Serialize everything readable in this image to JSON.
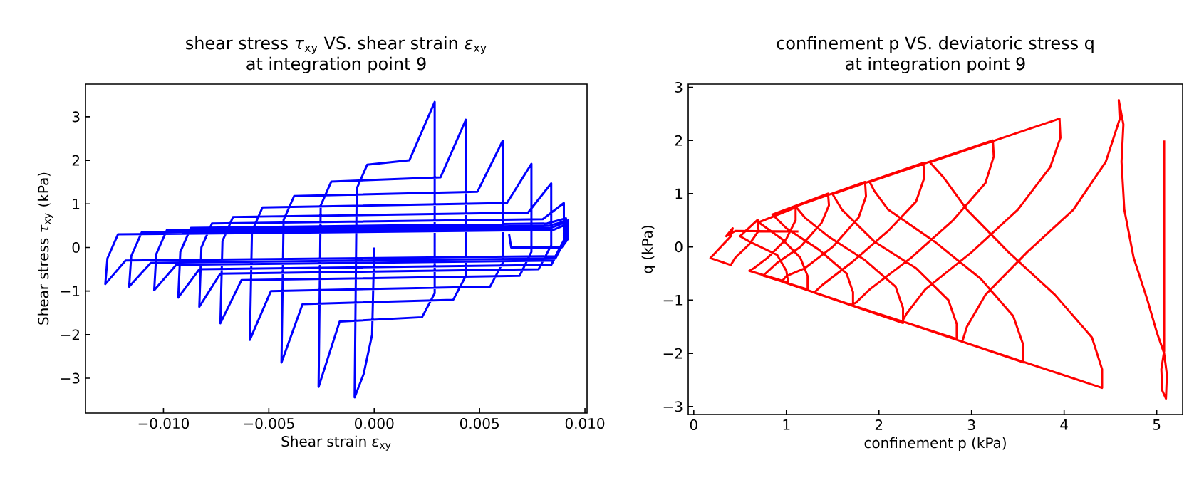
{
  "chart_data": [
    {
      "type": "line",
      "title": "shear stress *τ*$_{xy}$ VS. shear strain *ε*$_{xy}$",
      "subtitle": "at integration point 9",
      "xlabel": "Shear strain *ε*$_{xy}$",
      "ylabel": "Shear stress *τ*$_{xy}$ (kPa)",
      "xlim": [
        -0.0137,
        0.0101
      ],
      "ylim": [
        -3.8,
        3.75
      ],
      "xticks": [
        {
          "value": -0.01,
          "label": "−0.010"
        },
        {
          "value": -0.005,
          "label": "−0.005"
        },
        {
          "value": 0,
          "label": "0.000"
        },
        {
          "value": 0.005,
          "label": "0.005"
        },
        {
          "value": 0.01,
          "label": "0.010"
        }
      ],
      "yticks": [
        {
          "value": -3,
          "label": "−3"
        },
        {
          "value": -2,
          "label": "−2"
        },
        {
          "value": -1,
          "label": "−1"
        },
        0,
        1,
        2,
        3
      ],
      "grid": false,
      "marker": "none",
      "line_style": "solid",
      "series": [
        {
          "color": "#0000ff",
          "x": [
            0,
            -0.0001,
            -0.0005,
            -0.00093,
            -0.00083,
            -0.00033,
            0.00167,
            0.00287,
            0.00287,
            0.00227,
            -0.00164,
            -0.00264,
            -0.00254,
            -0.00204,
            0.00315,
            0.00435,
            0.00435,
            0.00375,
            -0.0034,
            -0.0044,
            -0.0043,
            -0.0038,
            0.0049,
            0.0061,
            0.0061,
            0.0055,
            -0.0049,
            -0.0059,
            -0.0058,
            -0.0053,
            0.0063,
            0.00746,
            0.00746,
            0.0069,
            -0.0063,
            -0.0073,
            -0.0072,
            -0.0067,
            0.0073,
            0.0084,
            0.0084,
            0.0078,
            -0.0073,
            -0.0083,
            -0.0082,
            -0.0077,
            0.008,
            0.009,
            0.009,
            0.0084,
            -0.0083,
            -0.0093,
            -0.0092,
            -0.0087,
            0.0082,
            0.0091,
            0.0091,
            0.0085,
            -0.0094,
            -0.01044,
            -0.01034,
            -0.00984,
            0.0083,
            0.0092,
            0.0092,
            0.0086,
            -0.0106,
            -0.01163,
            -0.01153,
            -0.01103,
            0.0084,
            0.0092,
            0.0092,
            0.0086,
            -0.0118,
            -0.01276,
            -0.01266,
            -0.01216,
            0.0085,
            0.0092,
            0.0092,
            0.0089,
            0.0065,
            0.0064
          ],
          "values": [
            0,
            -2.0,
            -2.9,
            -3.44,
            1.35,
            1.9,
            2.0,
            3.34,
            -1.05,
            -1.6,
            -1.7,
            -3.2,
            0.96,
            1.51,
            1.61,
            2.93,
            -0.65,
            -1.2,
            -1.3,
            -2.64,
            0.63,
            1.18,
            1.28,
            2.45,
            -0.35,
            -0.9,
            -1.0,
            -2.12,
            0.37,
            0.92,
            1.02,
            1.92,
            -0.1,
            -0.65,
            -0.75,
            -1.74,
            0.15,
            0.7,
            0.8,
            1.47,
            0.05,
            -0.5,
            -0.6,
            -1.36,
            0.0,
            0.55,
            0.65,
            1.02,
            0.15,
            -0.4,
            -0.5,
            -1.15,
            -0.1,
            0.45,
            0.55,
            0.67,
            0.25,
            -0.3,
            -0.4,
            -0.98,
            -0.15,
            0.4,
            0.5,
            0.62,
            0.3,
            -0.25,
            -0.35,
            -0.9,
            -0.2,
            0.35,
            0.45,
            0.6,
            0.35,
            -0.2,
            -0.3,
            -0.84,
            -0.25,
            0.3,
            0.4,
            0.55,
            0.2,
            0.0,
            0.0,
            0.3
          ]
        }
      ]
    },
    {
      "type": "line",
      "title": "confinement p VS. deviatoric stress q",
      "subtitle": "at integration point 9",
      "xlabel": "confinement p (kPa)",
      "ylabel": "q (kPa)",
      "xlim": [
        -0.06,
        5.28
      ],
      "ylim": [
        -3.15,
        3.06
      ],
      "xticks": [
        0,
        1,
        2,
        3,
        4,
        5
      ],
      "yticks": [
        {
          "value": -3,
          "label": "−3"
        },
        {
          "value": -2,
          "label": "−2"
        },
        {
          "value": -1,
          "label": "−1"
        },
        0,
        1,
        2,
        3
      ],
      "grid": false,
      "marker": "none",
      "line_style": "solid",
      "series": [
        {
          "color": "#ff0000",
          "x": [
            5.08,
            5.08,
            5.05,
            5.06,
            5.1,
            5.11,
            5.08,
            5.0,
            4.9,
            4.75,
            4.65,
            4.62,
            4.64,
            4.59,
            4.6,
            4.45,
            4.1,
            3.6,
            3.15,
            2.95,
            2.9,
            4.41,
            4.41,
            4.3,
            3.9,
            3.4,
            2.95,
            2.7,
            2.55,
            3.95,
            3.96,
            3.85,
            3.5,
            3.0,
            2.5,
            2.3,
            2.25,
            3.56,
            3.56,
            3.45,
            3.1,
            2.6,
            2.1,
            1.95,
            1.9,
            3.23,
            3.24,
            3.15,
            2.8,
            2.35,
            1.9,
            1.75,
            1.7,
            2.84,
            2.84,
            2.75,
            2.4,
            1.95,
            1.6,
            1.5,
            2.48,
            2.49,
            2.4,
            2.1,
            1.7,
            1.4,
            1.3,
            2.26,
            2.26,
            2.18,
            1.85,
            1.45,
            1.2,
            1.1,
            1.85,
            1.86,
            1.78,
            1.5,
            1.2,
            1.0,
            0.95,
            1.72,
            1.72,
            1.65,
            1.35,
            1.0,
            0.85,
            1.45,
            1.46,
            1.38,
            1.15,
            0.9,
            0.75,
            1.23,
            1.23,
            1.15,
            0.95,
            0.75,
            0.7,
            1.1,
            1.1,
            1.0,
            0.8,
            0.65,
            0.6,
            1.02,
            1.0,
            0.9,
            0.6,
            0.5,
            0.69,
            0.7,
            0.6,
            0.45,
            0.4,
            0.18,
            0.4,
            0.42,
            0.35,
            0.45,
            1.13
          ],
          "values": [
            2.0,
            -1.96,
            -2.3,
            -2.7,
            -2.85,
            -2.4,
            -2.0,
            -1.6,
            -1.0,
            -0.2,
            0.7,
            1.6,
            2.3,
            2.76,
            2.4,
            1.6,
            0.7,
            -0.1,
            -0.9,
            -1.5,
            -1.78,
            -2.65,
            -2.3,
            -1.7,
            -0.9,
            -0.1,
            0.7,
            1.3,
            1.59,
            2.41,
            2.05,
            1.5,
            0.7,
            -0.1,
            -0.8,
            -1.25,
            -1.4,
            -2.17,
            -1.85,
            -1.3,
            -0.6,
            0.1,
            0.7,
            1.05,
            1.22,
            2.0,
            1.7,
            1.2,
            0.5,
            -0.2,
            -0.8,
            -1.05,
            -1.09,
            -1.73,
            -1.45,
            -1.0,
            -0.4,
            0.1,
            0.7,
            0.99,
            1.58,
            1.3,
            0.85,
            0.3,
            -0.3,
            -0.7,
            -0.86,
            -1.43,
            -1.15,
            -0.75,
            -0.25,
            0.2,
            0.55,
            0.76,
            1.22,
            0.95,
            0.55,
            0.0,
            -0.4,
            -0.55,
            -0.65,
            -1.1,
            -0.85,
            -0.5,
            -0.05,
            0.35,
            0.61,
            1.0,
            0.78,
            0.45,
            0.0,
            -0.3,
            -0.54,
            -0.8,
            -0.55,
            -0.2,
            0.15,
            0.4,
            0.46,
            0.74,
            0.5,
            0.15,
            -0.2,
            -0.4,
            -0.45,
            -0.67,
            -0.45,
            -0.15,
            0.1,
            0.2,
            0.51,
            0.3,
            0.05,
            -0.2,
            -0.34,
            -0.21,
            0.2,
            0.35,
            0.2,
            0.3,
            0.29
          ]
        }
      ]
    }
  ]
}
